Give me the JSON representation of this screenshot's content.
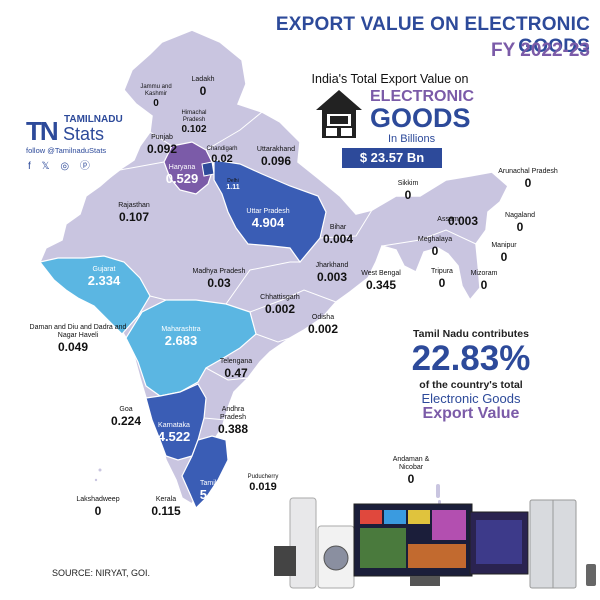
{
  "title": {
    "line1": "EXPORT VALUE ON ELECTRONIC GOODS",
    "line2": "FY 2022-23"
  },
  "logo": {
    "tn": "TN",
    "brand": "TAMILNADU",
    "stats": "Stats",
    "follow": "follow @TamilnaduStats",
    "social": "f 𝕏 ◎ ⓟ"
  },
  "india_total": {
    "heading": "India's Total Export Value on",
    "line1": "ELECTRONIC",
    "line2": "GOODS",
    "line3": "In Billions",
    "value": "$ 23.57 Bn"
  },
  "tn_share": {
    "lead": "Tamil Nadu contributes",
    "percent": "22.83%",
    "line1": "of the country's total",
    "line2": "Electronic Goods",
    "line3": "Export Value"
  },
  "source": "SOURCE: NIRYAT, GOI.",
  "colors": {
    "dark": "#3a5db5",
    "medium": "#5bb6e2",
    "purple": "#7b5ba8",
    "base": "#c9c5e0",
    "accent": "#2d4a9a"
  },
  "states": [
    {
      "id": "ladakh",
      "name": "Ladakh",
      "value": "0"
    },
    {
      "id": "jk",
      "name": "Jammu and Kashmir",
      "value": "0"
    },
    {
      "id": "hp",
      "name": "Himachal Pradesh",
      "value": "0.102"
    },
    {
      "id": "punjab",
      "name": "Punjab",
      "value": "0.092"
    },
    {
      "id": "chandigarh",
      "name": "Chandigarh",
      "value": "0.02"
    },
    {
      "id": "uttarakhand",
      "name": "Uttarakhand",
      "value": "0.096"
    },
    {
      "id": "haryana",
      "name": "Haryana",
      "value": "0.529"
    },
    {
      "id": "delhi",
      "name": "Delhi",
      "value": "1.11"
    },
    {
      "id": "rajasthan",
      "name": "Rajasthan",
      "value": "0.107"
    },
    {
      "id": "up",
      "name": "Uttar Pradesh",
      "value": "4.904"
    },
    {
      "id": "bihar",
      "name": "Bihar",
      "value": "0.004"
    },
    {
      "id": "sikkim",
      "name": "Sikkim",
      "value": "0"
    },
    {
      "id": "arunachal",
      "name": "Arunachal Pradesh",
      "value": "0"
    },
    {
      "id": "assam",
      "name": "Assam",
      "value": "0.003"
    },
    {
      "id": "nagaland",
      "name": "Nagaland",
      "value": "0"
    },
    {
      "id": "meghalaya",
      "name": "Meghalaya",
      "value": "0"
    },
    {
      "id": "manipur",
      "name": "Manipur",
      "value": "0"
    },
    {
      "id": "tripura",
      "name": "Tripura",
      "value": "0"
    },
    {
      "id": "mizoram",
      "name": "Mizoram",
      "value": "0"
    },
    {
      "id": "gujarat",
      "name": "Gujarat",
      "value": "2.334"
    },
    {
      "id": "mp",
      "name": "Madhya Pradesh",
      "value": "0.03"
    },
    {
      "id": "jharkhand",
      "name": "Jharkhand",
      "value": "0.003"
    },
    {
      "id": "wb",
      "name": "West Bengal",
      "value": "0.345"
    },
    {
      "id": "chhattisgarh",
      "name": "Chhattisgarh",
      "value": "0.002"
    },
    {
      "id": "odisha",
      "name": "Odisha",
      "value": "0.002"
    },
    {
      "id": "daman",
      "name": "Daman and Diu and Dadra and Nagar Haveli",
      "value": "0.049"
    },
    {
      "id": "maharashtra",
      "name": "Maharashtra",
      "value": "2.683"
    },
    {
      "id": "telangana",
      "name": "Telengana",
      "value": "0.47"
    },
    {
      "id": "goa",
      "name": "Goa",
      "value": "0.224"
    },
    {
      "id": "karnataka",
      "name": "Karnataka",
      "value": "4.522"
    },
    {
      "id": "ap",
      "name": "Andhra Pradesh",
      "value": "0.388"
    },
    {
      "id": "tamilnadu",
      "name": "Tamilnadu",
      "value": "5.371"
    },
    {
      "id": "puducherry",
      "name": "Puducherry",
      "value": "0.019"
    },
    {
      "id": "lakshadweep",
      "name": "Lakshadweep",
      "value": "0"
    },
    {
      "id": "kerala",
      "name": "Kerala",
      "value": "0.115"
    },
    {
      "id": "andaman",
      "name": "Andaman & Nicobar",
      "value": "0"
    }
  ]
}
